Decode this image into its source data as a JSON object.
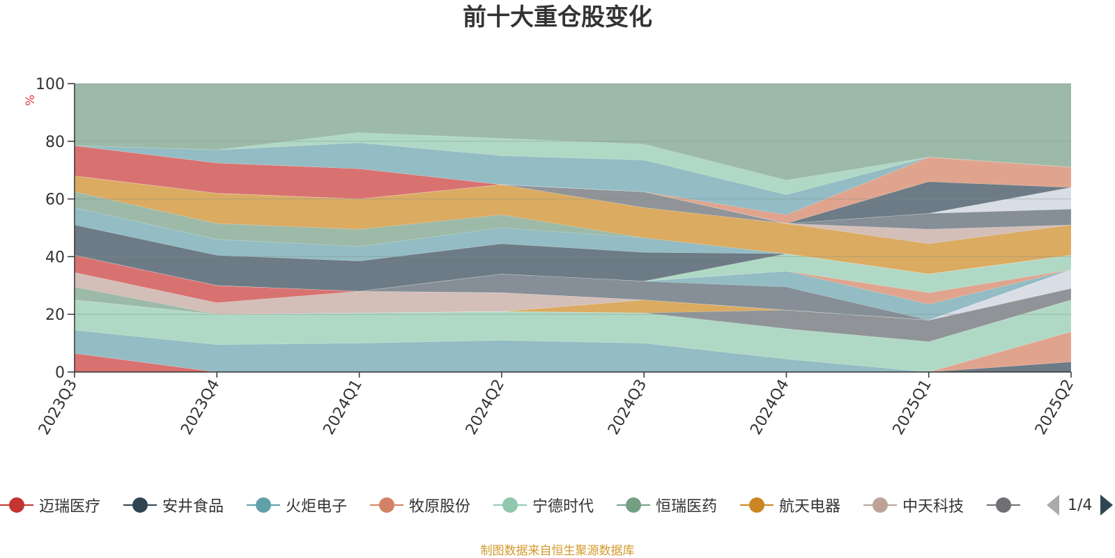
{
  "chart_data": {
    "type": "area",
    "title": "前十大重仓股变化",
    "ylabel": "%",
    "ylim": [
      0,
      100
    ],
    "yticks": [
      0,
      20,
      40,
      60,
      80,
      100
    ],
    "categories": [
      "2023Q3",
      "2023Q4",
      "2024Q1",
      "2024Q2",
      "2024Q3",
      "2024Q4",
      "2025Q1",
      "2025Q2"
    ],
    "stacked": true,
    "grid": true,
    "legend_position": "bottom",
    "background_color": "#9dbaa8",
    "layers": [
      {
        "color": "#d87270",
        "values": [
          6.5,
          0,
          0,
          0,
          0,
          0,
          0,
          0
        ]
      },
      {
        "color": "#6d7b86",
        "values": [
          0,
          0,
          0,
          0,
          0,
          0,
          0,
          3.5
        ]
      },
      {
        "color": "#e0a48e",
        "values": [
          0,
          0,
          0,
          0,
          0,
          0,
          0,
          10.5
        ]
      },
      {
        "color": "#93bcc4",
        "values": [
          8,
          9.5,
          10,
          11,
          10,
          4.5,
          0,
          0
        ]
      },
      {
        "color": "#b0d9c5",
        "values": [
          10.5,
          10.5,
          10.5,
          10,
          10.5,
          10.5,
          10.5,
          11
        ]
      },
      {
        "color": "#909498",
        "values": [
          0,
          0,
          0,
          0,
          0,
          6.5,
          7.5,
          4
        ]
      },
      {
        "color": "#dbab62",
        "values": [
          0,
          0,
          0,
          0,
          4.5,
          0,
          0,
          0
        ]
      },
      {
        "color": "#9dbaa8",
        "values": [
          4.5,
          0,
          0,
          0,
          0,
          0,
          0,
          0
        ]
      },
      {
        "color": "#d4beb8",
        "values": [
          5,
          4,
          7.5,
          6.5,
          0,
          0,
          0,
          0
        ]
      },
      {
        "color": "#d8dde6",
        "values": [
          0,
          0,
          0,
          0,
          0,
          0,
          0,
          6.5
        ]
      },
      {
        "color": "#d87270",
        "values": [
          6,
          6,
          0,
          0,
          0,
          0,
          0,
          0
        ]
      },
      {
        "color": "#868f97",
        "values": [
          0,
          0,
          0,
          6.5,
          6.5,
          8,
          0,
          0
        ]
      },
      {
        "color": "#93bcc4",
        "values": [
          0,
          0,
          0,
          0,
          0,
          5.5,
          5.5,
          0
        ]
      },
      {
        "color": "#e0a48e",
        "values": [
          0,
          0,
          0,
          0,
          0,
          0,
          4,
          0
        ]
      },
      {
        "color": "#b0d9c5",
        "values": [
          0,
          0,
          0,
          0,
          0,
          6,
          6.5,
          5
        ]
      },
      {
        "color": "#6d7b86",
        "values": [
          10.5,
          10.5,
          10.5,
          10.5,
          10,
          0,
          0,
          0
        ]
      },
      {
        "color": "#93bcc4",
        "values": [
          6,
          5.5,
          5,
          5.5,
          5,
          0,
          0,
          0
        ]
      },
      {
        "color": "#9dbaa8",
        "values": [
          5.5,
          5.5,
          6,
          4.5,
          0,
          0,
          0,
          0
        ]
      },
      {
        "color": "#dbab62",
        "values": [
          5.5,
          10.5,
          10.5,
          10.5,
          10.5,
          10.5,
          10.5,
          10.5
        ]
      },
      {
        "color": "#d4beb8",
        "values": [
          0,
          0,
          0,
          0,
          0,
          0,
          5,
          0
        ]
      },
      {
        "color": "#909498",
        "values": [
          0,
          0,
          0,
          0,
          5.5,
          0,
          0,
          0
        ]
      },
      {
        "color": "#868f97",
        "values": [
          0,
          0,
          0,
          0,
          0,
          0,
          5.5,
          5.5
        ]
      },
      {
        "color": "#d8dde6",
        "values": [
          0,
          0,
          0,
          0,
          0,
          0,
          0,
          7.5
        ]
      },
      {
        "color": "#d87270",
        "values": [
          10.5,
          10.5,
          10.5,
          0,
          0,
          0,
          0,
          0
        ]
      },
      {
        "color": "#6d7b86",
        "values": [
          0,
          0,
          0,
          0,
          0,
          0,
          11,
          0
        ]
      },
      {
        "color": "#e0a48e",
        "values": [
          0,
          0,
          0,
          0,
          0,
          3,
          8.5,
          7
        ]
      },
      {
        "color": "#93bcc4",
        "values": [
          0,
          4.5,
          9,
          10,
          11,
          7,
          0,
          0
        ]
      },
      {
        "color": "#b0d9c5",
        "values": [
          0,
          0,
          3.5,
          6,
          5.5,
          5,
          0,
          0
        ]
      }
    ],
    "legend": [
      {
        "name": "迈瑞医疗",
        "color": "#c23531"
      },
      {
        "name": "安井食品",
        "color": "#2f4554"
      },
      {
        "name": "火炬电子",
        "color": "#61a0a8"
      },
      {
        "name": "牧原股份",
        "color": "#d48265"
      },
      {
        "name": "宁德时代",
        "color": "#91c7ae"
      },
      {
        "name": "恒瑞医药",
        "color": "#749f83"
      },
      {
        "name": "航天电器",
        "color": "#ca8622"
      },
      {
        "name": "中天科技",
        "color": "#bda29a"
      },
      {
        "name": "",
        "color": "#6e7074"
      }
    ]
  },
  "legend_pager": {
    "text": "1/4"
  },
  "source_note": "制图数据来自恒生聚源数据库"
}
